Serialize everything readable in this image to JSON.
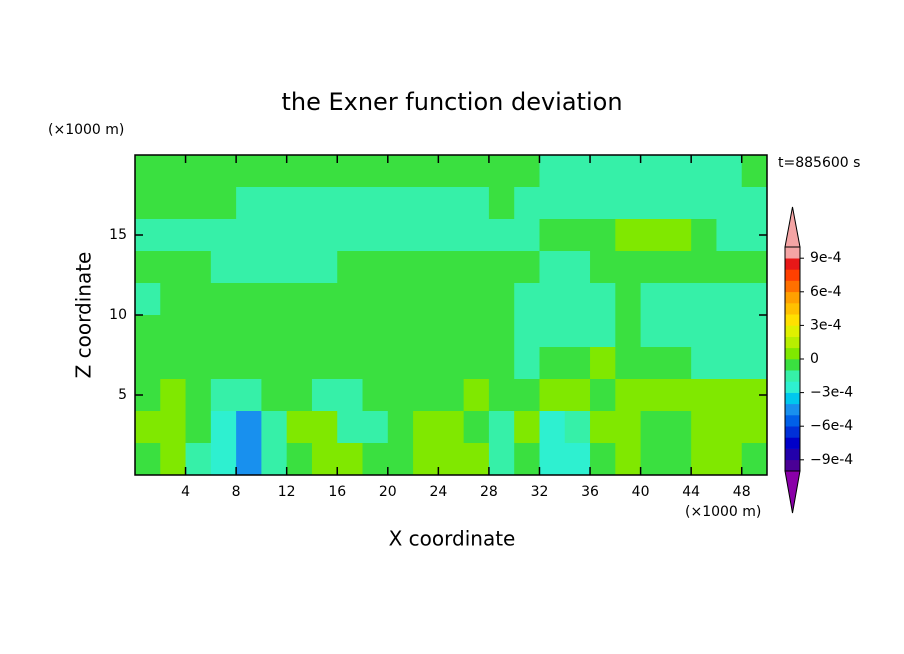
{
  "chart_data": {
    "type": "contour",
    "title": "the Exner function deviation",
    "xlabel": "X coordinate",
    "ylabel": "Z coordinate",
    "x_unit": "(×1000 m)",
    "y_unit": "(×1000 m)",
    "annotation": "t=885600 s",
    "xlim": [
      0,
      50
    ],
    "ylim": [
      0,
      20
    ],
    "xticks": [
      4,
      8,
      12,
      16,
      20,
      24,
      28,
      32,
      36,
      40,
      44,
      48
    ],
    "yticks": [
      5,
      10,
      15
    ],
    "levels": [
      -0.001,
      -0.0009,
      -0.0008,
      -0.0007,
      -0.0006,
      -0.0005,
      -0.0004,
      -0.0003,
      -0.0002,
      -0.0001,
      0,
      0.0001,
      0.0002,
      0.0003,
      0.0004,
      0.0005,
      0.0006,
      0.0007,
      0.0008,
      0.0009,
      0.001
    ],
    "colors": [
      "#8a00a8",
      "#4a0095",
      "#2200aa",
      "#0000c8",
      "#0030d8",
      "#0060e8",
      "#1890ee",
      "#00c8ee",
      "#2ef0d0",
      "#36f0a8",
      "#3ae040",
      "#80e800",
      "#b8ee00",
      "#e0f000",
      "#ffe000",
      "#ffc000",
      "#ffa000",
      "#ff7000",
      "#ff4000",
      "#e81818",
      "#f4a4a4"
    ],
    "colorbar_ticks": [
      {
        "value": 0.0009,
        "label": "9e-4"
      },
      {
        "value": 0.0006,
        "label": "6e-4"
      },
      {
        "value": 0.0003,
        "label": "3e-4"
      },
      0,
      {
        "value": -0.0003,
        "label": "−3e-4"
      },
      {
        "value": -0.0006,
        "label": "−6e-4"
      },
      {
        "value": -0.0009,
        "label": "−9e-4"
      }
    ],
    "x": [
      1,
      3,
      5,
      7,
      9,
      11,
      13,
      15,
      17,
      19,
      21,
      23,
      25,
      27,
      29,
      31,
      33,
      35,
      37,
      39,
      41,
      43,
      45,
      47,
      49
    ],
    "y": [
      19,
      17,
      15,
      13,
      11,
      9,
      7,
      5,
      3,
      1
    ],
    "z": [
      [
        -5e-05,
        -5e-05,
        -5e-05,
        -5e-05,
        -5e-05,
        -5e-05,
        -5e-05,
        -5e-05,
        -5e-05,
        -5e-05,
        -5e-05,
        -5e-05,
        -5e-05,
        -5e-05,
        -5e-05,
        -5e-05,
        -0.00015,
        -0.00015,
        -0.00015,
        -0.00015,
        -0.00015,
        -0.00015,
        -0.00015,
        -0.00015,
        -5e-05
      ],
      [
        -5e-05,
        -5e-05,
        -5e-05,
        -5e-05,
        -0.00015,
        -0.00015,
        -0.00015,
        -0.00015,
        -0.00015,
        -0.00015,
        -0.00015,
        -0.00015,
        -0.00015,
        -0.00015,
        -5e-05,
        -0.00015,
        -0.00015,
        -0.00015,
        -0.00015,
        -0.00015,
        -0.00015,
        -0.00015,
        -0.00015,
        -0.00015,
        -0.00015
      ],
      [
        -0.00015,
        -0.00015,
        -0.00015,
        -0.00015,
        -0.00015,
        -0.00015,
        -0.00015,
        -0.00015,
        -0.00015,
        -0.00015,
        -0.00015,
        -0.00015,
        -0.00015,
        -0.00015,
        -0.00015,
        -0.00015,
        -5e-05,
        -5e-05,
        -5e-05,
        5e-05,
        5e-05,
        5e-05,
        -5e-05,
        -0.00015,
        -0.00015
      ],
      [
        -5e-05,
        -5e-05,
        -5e-05,
        -0.00015,
        -0.00015,
        -0.00015,
        -0.00015,
        -0.00015,
        -5e-05,
        -5e-05,
        -5e-05,
        -5e-05,
        -5e-05,
        -5e-05,
        -5e-05,
        -5e-05,
        -0.00015,
        -0.00015,
        -5e-05,
        -5e-05,
        -5e-05,
        -5e-05,
        -5e-05,
        -5e-05,
        -5e-05
      ],
      [
        -0.00015,
        -5e-05,
        -5e-05,
        -5e-05,
        -5e-05,
        -5e-05,
        -5e-05,
        -5e-05,
        -5e-05,
        -5e-05,
        -5e-05,
        -5e-05,
        -5e-05,
        -5e-05,
        -5e-05,
        -0.00015,
        -0.00015,
        -0.00015,
        -0.00015,
        -5e-05,
        -0.00015,
        -0.00015,
        -0.00015,
        -0.00015,
        -0.00015
      ],
      [
        -5e-05,
        -5e-05,
        -5e-05,
        -5e-05,
        -5e-05,
        -5e-05,
        -5e-05,
        -5e-05,
        -5e-05,
        -5e-05,
        -5e-05,
        -5e-05,
        -5e-05,
        -5e-05,
        -5e-05,
        -0.00015,
        -0.00015,
        -0.00015,
        -0.00015,
        -5e-05,
        -0.00015,
        -0.00015,
        -0.00015,
        -0.00015,
        -0.00015
      ],
      [
        -5e-05,
        -5e-05,
        -5e-05,
        -5e-05,
        -5e-05,
        -5e-05,
        -5e-05,
        -5e-05,
        -5e-05,
        -5e-05,
        -5e-05,
        -5e-05,
        -5e-05,
        -5e-05,
        -5e-05,
        -0.00015,
        -5e-05,
        -5e-05,
        5e-05,
        -5e-05,
        -5e-05,
        -5e-05,
        -0.00015,
        -0.00015,
        -0.00015
      ],
      [
        -5e-05,
        5e-05,
        -5e-05,
        -0.00015,
        -0.00015,
        -5e-05,
        -5e-05,
        -0.00015,
        -0.00015,
        -5e-05,
        -5e-05,
        -5e-05,
        -5e-05,
        5e-05,
        -5e-05,
        -5e-05,
        5e-05,
        5e-05,
        -5e-05,
        5e-05,
        5e-05,
        5e-05,
        5e-05,
        5e-05,
        5e-05
      ],
      [
        5e-05,
        5e-05,
        -5e-05,
        -0.00025,
        -0.00045,
        -0.00015,
        5e-05,
        5e-05,
        -0.00015,
        -0.00015,
        -5e-05,
        5e-05,
        5e-05,
        -5e-05,
        -0.00015,
        5e-05,
        -0.00025,
        -0.00015,
        5e-05,
        5e-05,
        -5e-05,
        -5e-05,
        5e-05,
        5e-05,
        5e-05
      ],
      [
        -5e-05,
        5e-05,
        -0.00015,
        -0.00025,
        -0.00045,
        -0.00015,
        -5e-05,
        5e-05,
        5e-05,
        -5e-05,
        -5e-05,
        5e-05,
        5e-05,
        5e-05,
        -0.00015,
        -5e-05,
        -0.00025,
        -0.00025,
        -5e-05,
        5e-05,
        -5e-05,
        -5e-05,
        5e-05,
        5e-05,
        -5e-05
      ]
    ]
  }
}
